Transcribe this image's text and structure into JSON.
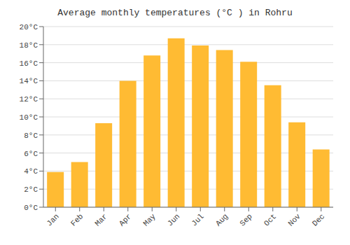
{
  "chart_data": {
    "type": "bar",
    "title": "Average monthly temperatures (°C ) in Rohru",
    "categories": [
      "Jan",
      "Feb",
      "Mar",
      "Apr",
      "May",
      "Jun",
      "Jul",
      "Aug",
      "Sep",
      "Oct",
      "Nov",
      "Dec"
    ],
    "values": [
      3.9,
      5.0,
      9.3,
      14.0,
      16.8,
      18.7,
      17.9,
      17.4,
      16.1,
      13.5,
      9.4,
      6.4
    ],
    "color": "#FFBB33",
    "ylim": [
      0,
      20
    ],
    "yticks": [
      {
        "value": 0,
        "label": "0°C"
      },
      {
        "value": 2,
        "label": "2°C"
      },
      {
        "value": 4,
        "label": "4°C"
      },
      {
        "value": 6,
        "label": "6°C"
      },
      {
        "value": 8,
        "label": "8°C"
      },
      {
        "value": 10,
        "label": "10°C"
      },
      {
        "value": 12,
        "label": "12°C"
      },
      {
        "value": 14,
        "label": "14°C"
      },
      {
        "value": 16,
        "label": "16°C"
      },
      {
        "value": 18,
        "label": "18°C"
      },
      {
        "value": 20,
        "label": "20°C"
      }
    ],
    "grid": true
  }
}
